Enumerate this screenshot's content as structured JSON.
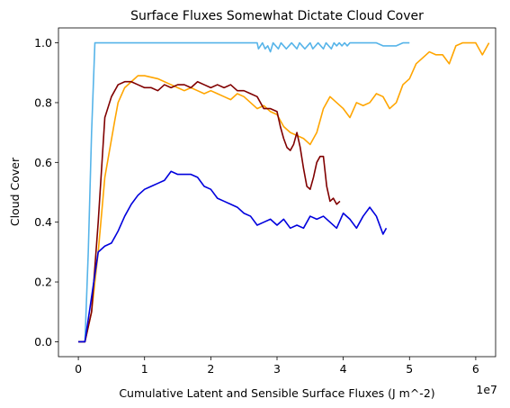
{
  "chart_data": {
    "type": "line",
    "title": "Surface Fluxes Somewhat Dictate Cloud Cover",
    "xlabel": "Cumulative Latent and Sensible Surface Fluxes (J m^-2)",
    "ylabel": "Cloud Cover",
    "x_offset_label": "1e7",
    "xlim": [
      -0.3,
      6.3
    ],
    "ylim": [
      -0.05,
      1.05
    ],
    "x_ticks": [
      0,
      1,
      2,
      3,
      4,
      5,
      6
    ],
    "x_tick_labels": [
      "0",
      "1",
      "2",
      "3",
      "4",
      "5",
      "6"
    ],
    "y_ticks": [
      0.0,
      0.2,
      0.4,
      0.6,
      0.8,
      1.0
    ],
    "y_tick_labels": [
      "0.0",
      "0.2",
      "0.4",
      "0.6",
      "0.8",
      "1.0"
    ],
    "grid": false,
    "series": [
      {
        "color": "#56b4e9",
        "x": [
          0,
          0.1,
          0.15,
          0.2,
          0.25,
          0.3,
          0.35,
          0.4,
          1.0,
          2.0,
          2.7,
          2.72,
          2.75,
          2.78,
          2.82,
          2.86,
          2.9,
          2.94,
          2.98,
          3.02,
          3.06,
          3.1,
          3.14,
          3.18,
          3.22,
          3.26,
          3.3,
          3.34,
          3.38,
          3.42,
          3.46,
          3.5,
          3.54,
          3.58,
          3.62,
          3.66,
          3.7,
          3.74,
          3.78,
          3.82,
          3.86,
          3.9,
          3.94,
          3.98,
          4.02,
          4.06,
          4.1,
          4.2,
          4.3,
          4.4,
          4.5,
          4.6,
          4.7,
          4.8,
          4.9,
          5.0
        ],
        "y": [
          0,
          0,
          0.3,
          0.7,
          1.0,
          1.0,
          1.0,
          1.0,
          1.0,
          1.0,
          1.0,
          0.98,
          0.99,
          1.0,
          0.98,
          0.99,
          0.97,
          1.0,
          0.99,
          0.98,
          1.0,
          0.99,
          0.98,
          0.99,
          1.0,
          0.99,
          0.98,
          1.0,
          0.99,
          0.98,
          0.99,
          1.0,
          0.98,
          0.99,
          1.0,
          0.99,
          0.98,
          1.0,
          0.99,
          0.98,
          1.0,
          0.99,
          1.0,
          0.99,
          1.0,
          0.99,
          1.0,
          1.0,
          1.0,
          1.0,
          1.0,
          0.99,
          0.99,
          0.99,
          1.0,
          1.0
        ]
      },
      {
        "color": "#ffa500",
        "x": [
          0,
          0.1,
          0.2,
          0.3,
          0.4,
          0.55,
          0.6,
          0.7,
          0.8,
          0.9,
          1.0,
          1.2,
          1.4,
          1.5,
          1.6,
          1.7,
          1.8,
          1.9,
          2.0,
          2.1,
          2.2,
          2.3,
          2.4,
          2.5,
          2.6,
          2.7,
          2.8,
          2.9,
          3.0,
          3.1,
          3.2,
          3.3,
          3.4,
          3.5,
          3.6,
          3.7,
          3.8,
          3.9,
          4.0,
          4.1,
          4.2,
          4.3,
          4.4,
          4.5,
          4.6,
          4.7,
          4.8,
          4.9,
          5.0,
          5.1,
          5.2,
          5.3,
          5.4,
          5.5,
          5.6,
          5.7,
          5.8,
          5.9,
          6.0,
          6.1,
          6.2
        ],
        "y": [
          0,
          0,
          0.1,
          0.3,
          0.55,
          0.74,
          0.8,
          0.85,
          0.87,
          0.89,
          0.89,
          0.88,
          0.86,
          0.85,
          0.84,
          0.85,
          0.84,
          0.83,
          0.84,
          0.83,
          0.82,
          0.81,
          0.83,
          0.82,
          0.8,
          0.78,
          0.79,
          0.77,
          0.76,
          0.72,
          0.7,
          0.69,
          0.68,
          0.66,
          0.7,
          0.78,
          0.82,
          0.8,
          0.78,
          0.75,
          0.8,
          0.79,
          0.8,
          0.83,
          0.82,
          0.78,
          0.8,
          0.86,
          0.88,
          0.93,
          0.95,
          0.97,
          0.96,
          0.96,
          0.93,
          0.99,
          1.0,
          1.0,
          1.0,
          0.96,
          1.0
        ]
      },
      {
        "color": "#800000",
        "x": [
          0,
          0.1,
          0.2,
          0.3,
          0.4,
          0.5,
          0.6,
          0.7,
          0.8,
          0.9,
          1.0,
          1.1,
          1.2,
          1.3,
          1.4,
          1.5,
          1.6,
          1.7,
          1.8,
          1.9,
          2.0,
          2.1,
          2.2,
          2.3,
          2.4,
          2.5,
          2.6,
          2.7,
          2.8,
          2.9,
          3.0,
          3.05,
          3.1,
          3.15,
          3.2,
          3.25,
          3.3,
          3.35,
          3.4,
          3.45,
          3.5,
          3.55,
          3.6,
          3.65,
          3.7,
          3.75,
          3.8,
          3.85,
          3.9,
          3.95
        ],
        "y": [
          0,
          0,
          0.1,
          0.4,
          0.75,
          0.82,
          0.86,
          0.87,
          0.87,
          0.86,
          0.85,
          0.85,
          0.84,
          0.86,
          0.85,
          0.86,
          0.86,
          0.85,
          0.87,
          0.86,
          0.85,
          0.86,
          0.85,
          0.86,
          0.84,
          0.84,
          0.83,
          0.82,
          0.78,
          0.78,
          0.77,
          0.72,
          0.68,
          0.65,
          0.64,
          0.66,
          0.7,
          0.65,
          0.58,
          0.52,
          0.51,
          0.55,
          0.6,
          0.62,
          0.62,
          0.52,
          0.47,
          0.48,
          0.46,
          0.47
        ]
      },
      {
        "color": "#0000dd",
        "x": [
          0,
          0.1,
          0.2,
          0.3,
          0.4,
          0.5,
          0.6,
          0.7,
          0.8,
          0.9,
          1.0,
          1.1,
          1.2,
          1.3,
          1.4,
          1.5,
          1.6,
          1.7,
          1.8,
          1.9,
          2.0,
          2.1,
          2.2,
          2.3,
          2.4,
          2.5,
          2.6,
          2.7,
          2.8,
          2.9,
          3.0,
          3.1,
          3.2,
          3.3,
          3.4,
          3.5,
          3.6,
          3.7,
          3.8,
          3.9,
          4.0,
          4.1,
          4.2,
          4.3,
          4.4,
          4.5,
          4.6,
          4.65
        ],
        "y": [
          0,
          0,
          0.15,
          0.3,
          0.32,
          0.33,
          0.37,
          0.42,
          0.46,
          0.49,
          0.51,
          0.52,
          0.53,
          0.54,
          0.57,
          0.56,
          0.56,
          0.56,
          0.55,
          0.52,
          0.51,
          0.48,
          0.47,
          0.46,
          0.45,
          0.43,
          0.42,
          0.39,
          0.4,
          0.41,
          0.39,
          0.41,
          0.38,
          0.39,
          0.38,
          0.42,
          0.41,
          0.42,
          0.4,
          0.38,
          0.43,
          0.41,
          0.38,
          0.42,
          0.45,
          0.42,
          0.36,
          0.38
        ]
      }
    ]
  }
}
